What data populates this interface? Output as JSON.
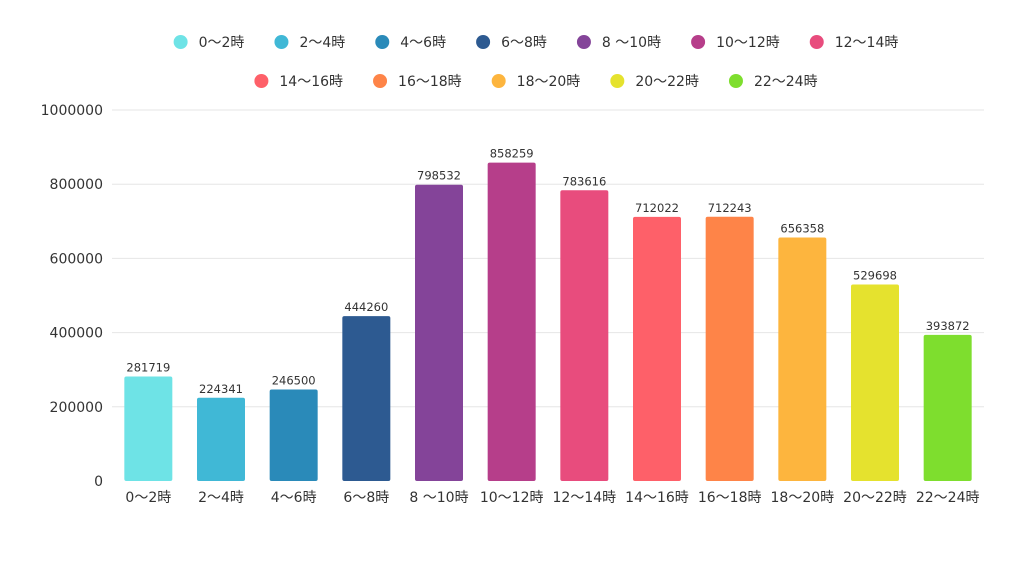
{
  "chart_data": {
    "type": "bar",
    "categories": [
      "0〜2時",
      "2〜4時",
      "4〜6時",
      "6〜8時",
      "8 〜10時",
      "10〜12時",
      "12〜14時",
      "14〜16時",
      "16〜18時",
      "18〜20時",
      "20〜22時",
      "22〜24時"
    ],
    "values": [
      281719,
      224341,
      246500,
      444260,
      798532,
      858259,
      783616,
      712022,
      712243,
      656358,
      529698,
      393872
    ],
    "colors": [
      "#6ee3e6",
      "#40b8d6",
      "#2a8ab9",
      "#2d5a91",
      "#844499",
      "#b63e8a",
      "#e84c7d",
      "#fe6069",
      "#fe8448",
      "#fdb53e",
      "#e5e22e",
      "#7ede2e"
    ],
    "ylim": [
      0,
      1000000
    ],
    "yticks": [
      0,
      200000,
      400000,
      600000,
      800000,
      1000000
    ],
    "grid": true,
    "legend": "top",
    "legend_rows": 2,
    "legend_first_row_count": 7,
    "data_labels": true,
    "title": "",
    "xlabel": "",
    "ylabel": ""
  }
}
